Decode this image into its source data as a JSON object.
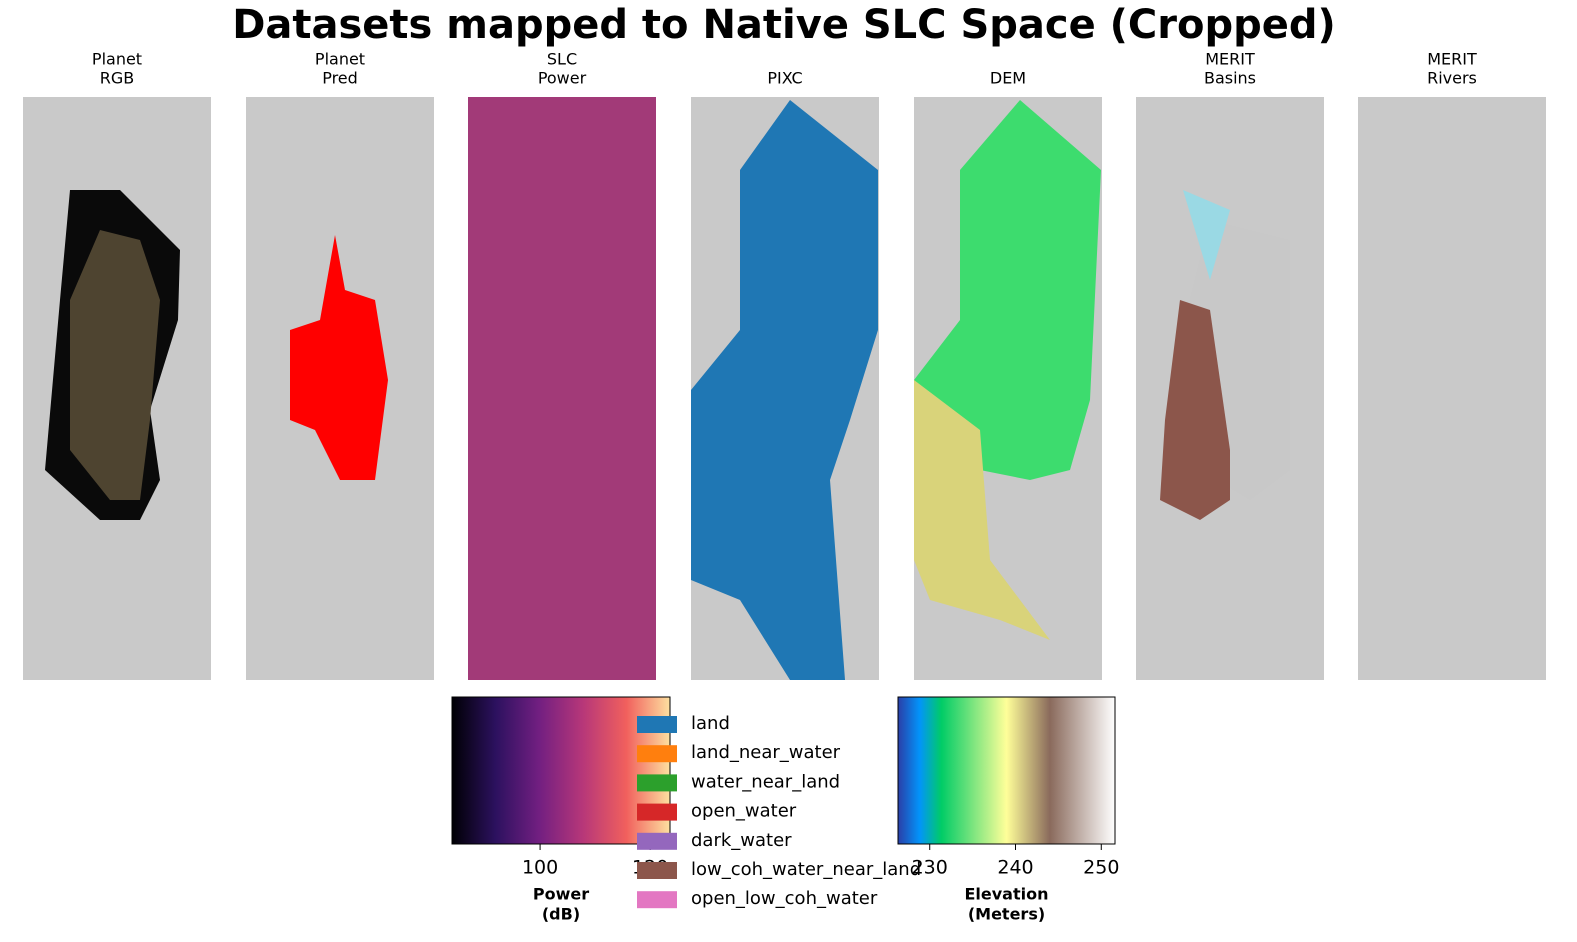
{
  "title": "Datasets mapped to Native SLC Space (Cropped)",
  "panels": [
    {
      "title": [
        "Planet",
        "RGB"
      ]
    },
    {
      "title": [
        "Planet",
        "Pred"
      ]
    },
    {
      "title": [
        "SLC",
        "Power"
      ]
    },
    {
      "title": [
        "PIXC"
      ]
    },
    {
      "title": [
        "DEM"
      ]
    },
    {
      "title": [
        "MERIT",
        "Basins"
      ]
    },
    {
      "title": [
        "MERIT",
        "Rivers"
      ]
    }
  ],
  "colorbars": [
    {
      "label": [
        "Power",
        "(dB)"
      ],
      "xlim": [
        84,
        123.6
      ],
      "xticks": [
        100,
        120
      ]
    },
    {
      "label": [
        "Elevation",
        "(Meters)"
      ],
      "xlim": [
        226.3,
        251.6
      ],
      "xticks": [
        230,
        240,
        250
      ]
    }
  ],
  "legend": [
    {
      "name": "land",
      "color": "#1f77b4"
    },
    {
      "name": "land_near_water",
      "color": "#ff7f0e"
    },
    {
      "name": "water_near_land",
      "color": "#2ca02c"
    },
    {
      "name": "open_water",
      "color": "#d62728"
    },
    {
      "name": "dark_water",
      "color": "#9467bd"
    },
    {
      "name": "low_coh_water_near_land",
      "color": "#8c564b"
    },
    {
      "name": "open_low_coh_water",
      "color": "#e377c2"
    }
  ]
}
